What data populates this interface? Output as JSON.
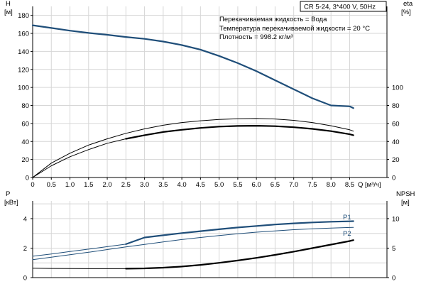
{
  "chart_data": {
    "type": "line",
    "header": "CR 5-24, 3*400 V, 50Hz",
    "info_lines": [
      "Перекачиваемая жидкость = Вода",
      "Температура перекачиваемой жидкости = 20 °C",
      "Плотность = 998.2 кг/м³"
    ],
    "x_unit_label": "Q [м³/ч]",
    "x_ticks": [
      "0",
      "0.5",
      "1.0",
      "1.5",
      "2.0",
      "2.5",
      "3.0",
      "3.5",
      "4.0",
      "4.5",
      "5.0",
      "5.5",
      "6.0",
      "6.5",
      "7.0",
      "7.5",
      "8.0",
      "8.5"
    ],
    "xlim": [
      0,
      9.5
    ],
    "top_panel": {
      "left_axis": {
        "name": "H",
        "unit": "[м]",
        "ylim": [
          0,
          190
        ],
        "ticks": [
          0,
          20,
          40,
          60,
          80,
          100,
          120,
          140,
          160,
          180
        ]
      },
      "right_axis": {
        "name": "eta",
        "unit": "[%]",
        "ylim": [
          0,
          190
        ],
        "ticks": [
          0,
          20,
          40,
          60,
          80,
          100
        ]
      },
      "series": [
        {
          "axis": "left",
          "style": "thick-blue",
          "x": [
            0,
            0.5,
            1.0,
            1.5,
            2.0,
            2.5
          ],
          "y": [
            169,
            166,
            163,
            160.5,
            158.5,
            156
          ]
        },
        {
          "axis": "left",
          "style": "thick-blue",
          "x": [
            2.5,
            3.0,
            3.5,
            4.0,
            4.5,
            5.0,
            5.5,
            6.0,
            6.5,
            7.0,
            7.5,
            8.0,
            8.5,
            8.6
          ],
          "y": [
            156,
            154,
            151,
            147,
            142,
            135,
            127,
            118,
            108,
            98,
            88,
            80,
            79,
            77
          ]
        },
        {
          "axis": "right",
          "style": "thin-black",
          "x": [
            0,
            0.5,
            1.0,
            1.5,
            2.0,
            2.5,
            3.0,
            3.5,
            4.0,
            4.5,
            5.0,
            5.5,
            6.0,
            6.5,
            7.0,
            7.5,
            8.0,
            8.5,
            8.6
          ],
          "y": [
            0,
            16,
            27,
            36,
            43,
            49,
            54,
            58,
            61,
            63,
            64.5,
            65.3,
            65.5,
            65,
            63.5,
            61,
            57.5,
            53,
            51.5
          ]
        },
        {
          "axis": "right",
          "style": "thin-black",
          "x": [
            0,
            0.5,
            1.0,
            1.5,
            2.0,
            2.5
          ],
          "y": [
            0,
            13,
            23,
            31,
            38,
            43
          ]
        },
        {
          "axis": "right",
          "style": "thick-black",
          "x": [
            2.5,
            3.0,
            3.5,
            4.0,
            4.5,
            5.0,
            5.5,
            6.0,
            6.5,
            7.0,
            7.5,
            8.0,
            8.5,
            8.6
          ],
          "y": [
            43,
            47,
            50.5,
            53,
            55,
            56.5,
            57.2,
            57.5,
            57,
            55.8,
            54,
            51.5,
            48,
            47
          ]
        }
      ]
    },
    "bottom_panel": {
      "left_axis": {
        "name": "P",
        "unit": "[кВт]",
        "ylim": [
          0,
          5.2
        ],
        "ticks": [
          0,
          2,
          4
        ]
      },
      "right_axis": {
        "name": "NPSH",
        "unit": "[м]",
        "ylim": [
          0,
          13
        ],
        "ticks": [
          0,
          5,
          10
        ]
      },
      "series": [
        {
          "name": "P1",
          "axis": "left",
          "style": "thin-blue",
          "x": [
            0,
            0.5,
            1.0,
            1.5,
            2.0,
            2.5
          ],
          "y": [
            1.45,
            1.6,
            1.77,
            1.93,
            2.1,
            2.27
          ]
        },
        {
          "name": "P1",
          "axis": "left",
          "style": "thick-blue",
          "x": [
            2.5,
            3.0,
            3.5,
            4.0,
            4.5,
            5.0,
            5.5,
            6.0,
            6.5,
            7.0,
            7.5,
            8.0,
            8.5,
            8.6
          ],
          "y": [
            2.27,
            2.72,
            2.87,
            3.02,
            3.15,
            3.28,
            3.4,
            3.5,
            3.6,
            3.68,
            3.74,
            3.79,
            3.82,
            3.83
          ]
        },
        {
          "name": "P2",
          "axis": "left",
          "style": "thin-blue",
          "x": [
            0,
            0.5,
            1.0,
            1.5,
            2.0,
            2.5,
            3.0,
            3.5,
            4.0,
            4.5,
            5.0,
            5.5,
            6.0,
            6.5,
            7.0,
            7.5,
            8.0,
            8.5,
            8.6
          ],
          "y": [
            1.22,
            1.38,
            1.55,
            1.72,
            1.9,
            2.08,
            2.25,
            2.42,
            2.58,
            2.72,
            2.85,
            2.97,
            3.08,
            3.17,
            3.25,
            3.31,
            3.36,
            3.4,
            3.41
          ]
        },
        {
          "axis": "right",
          "style": "thin-black",
          "x": [
            0,
            0.5,
            1.0,
            1.5,
            2.0,
            2.5
          ],
          "y": [
            1.6,
            1.55,
            1.53,
            1.52,
            1.52,
            1.52
          ]
        },
        {
          "axis": "right",
          "style": "thick-black",
          "x": [
            2.5,
            3.0,
            3.5,
            4.0,
            4.5,
            5.0,
            5.5,
            6.0,
            6.5,
            7.0,
            7.5,
            8.0,
            8.5,
            8.6
          ],
          "y": [
            1.52,
            1.56,
            1.68,
            1.88,
            2.15,
            2.5,
            2.9,
            3.35,
            3.85,
            4.4,
            5.0,
            5.6,
            6.2,
            6.35
          ]
        }
      ]
    }
  }
}
